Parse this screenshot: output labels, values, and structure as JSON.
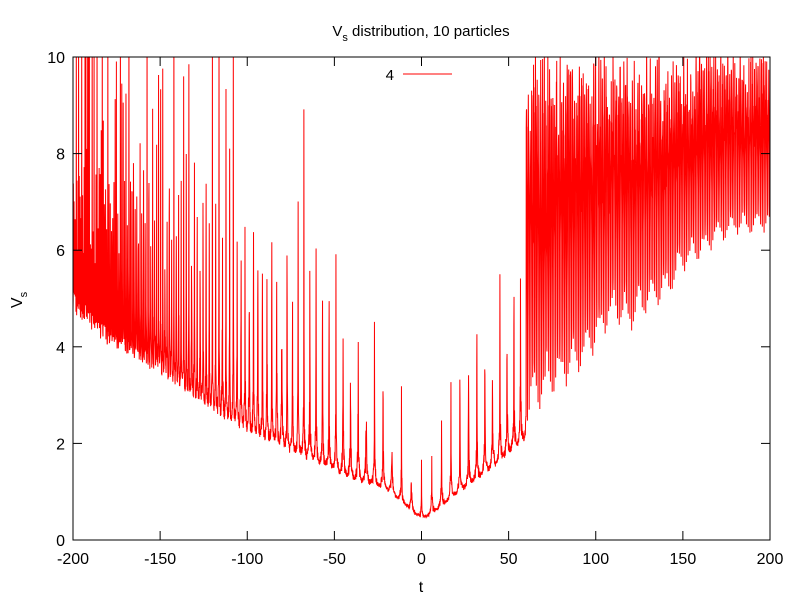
{
  "chart_data": {
    "type": "line",
    "title": "Vs distribution, 10 particles",
    "title_main": "V",
    "title_sub": "s",
    "title_rest": " distribution, 10 particles",
    "xlabel": "t",
    "ylabel_main": "V",
    "ylabel_sub": "s",
    "xlim": [
      -200,
      200
    ],
    "ylim": [
      0,
      10
    ],
    "x_ticks": [
      -200,
      -150,
      -100,
      -50,
      0,
      50,
      100,
      150,
      200
    ],
    "y_ticks": [
      0,
      2,
      4,
      6,
      8,
      10
    ],
    "grid": false,
    "legend_position": "top-center",
    "series": [
      {
        "name": "4",
        "color": "#ff0000",
        "envelope": {
          "t": [
            -200,
            -180,
            -160,
            -140,
            -120,
            -100,
            -80,
            -60,
            -40,
            -20,
            -10,
            0,
            10,
            20,
            40,
            60,
            70,
            80,
            90,
            100,
            110,
            120,
            130,
            140,
            150,
            160,
            170,
            180,
            190,
            200
          ],
          "baseline": [
            4.5,
            3.8,
            3.5,
            3.0,
            2.5,
            2.1,
            1.8,
            1.5,
            1.2,
            1.0,
            0.7,
            0.4,
            0.6,
            0.9,
            1.4,
            2.0,
            2.5,
            2.8,
            3.1,
            3.6,
            4.2,
            4.0,
            4.4,
            4.6,
            5.2,
            5.5,
            5.8,
            6.0,
            6.0,
            6.1
          ]
        }
      }
    ]
  }
}
